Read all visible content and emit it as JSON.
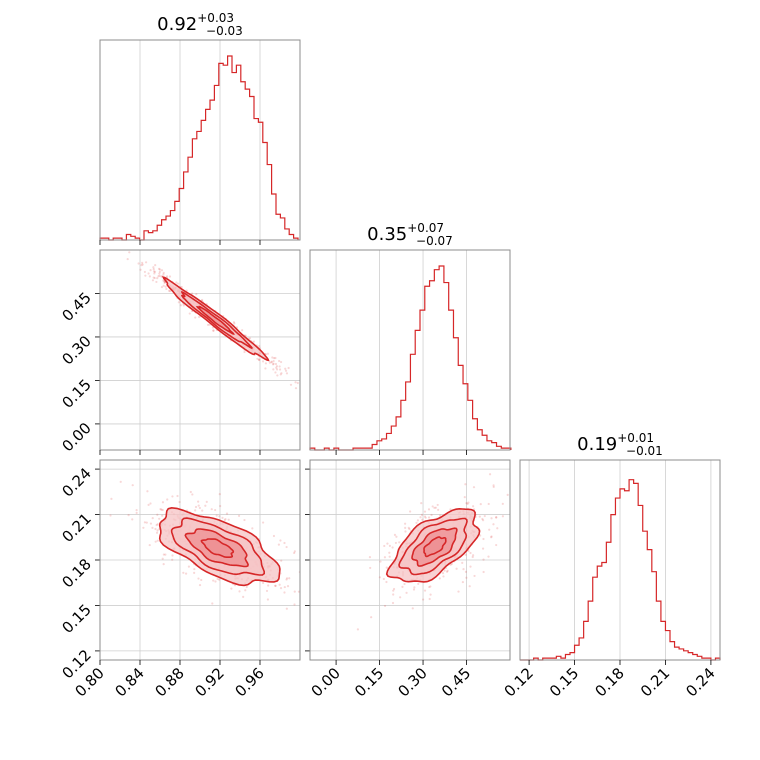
{
  "colors": {
    "accent": "#d62728",
    "fill_1": "#f6c3c4",
    "fill_2": "#ee8f92",
    "grid": "#cfcfcf",
    "frame": "#8c8c8c"
  },
  "chart_data": {
    "type": "corner",
    "grid": true,
    "parameters": [
      {
        "title": {
          "median": "0.92",
          "plus": "+0.03",
          "minus": "−0.03"
        },
        "range": [
          0.8,
          1.0
        ],
        "ticks": [
          0.8,
          0.84,
          0.88,
          0.92,
          0.96
        ],
        "tick_labels": [
          "0.80",
          "0.84",
          "0.88",
          "0.92",
          "0.96"
        ],
        "hist": [
          0.01,
          0.01,
          0.0,
          0.01,
          0.01,
          0.0,
          0.03,
          0.02,
          0.01,
          0.0,
          0.05,
          0.04,
          0.05,
          0.08,
          0.11,
          0.13,
          0.16,
          0.21,
          0.28,
          0.37,
          0.45,
          0.55,
          0.59,
          0.65,
          0.71,
          0.76,
          0.84,
          0.96,
          0.95,
          1.0,
          0.91,
          0.95,
          0.86,
          0.82,
          0.78,
          0.66,
          0.64,
          0.53,
          0.41,
          0.25,
          0.14,
          0.12,
          0.06,
          0.03,
          0.01
        ],
        "hist_start": 0.8,
        "hist_bin": 0.0044
      },
      {
        "title": {
          "median": "0.35",
          "plus": "+0.07",
          "minus": "−0.07"
        },
        "range": [
          -0.09,
          0.6
        ],
        "ticks": [
          0.0,
          0.15,
          0.3,
          0.45
        ],
        "tick_labels": [
          "0.00",
          "0.15",
          "0.30",
          "0.45"
        ],
        "hist": [
          0.01,
          0.0,
          0.0,
          0.01,
          0.0,
          0.01,
          0.0,
          0.0,
          0.0,
          0.01,
          0.01,
          0.01,
          0.01,
          0.03,
          0.05,
          0.06,
          0.09,
          0.13,
          0.18,
          0.27,
          0.37,
          0.52,
          0.65,
          0.76,
          0.89,
          0.92,
          0.98,
          1.0,
          0.91,
          0.76,
          0.61,
          0.46,
          0.36,
          0.27,
          0.17,
          0.11,
          0.08,
          0.05,
          0.04,
          0.02,
          0.01,
          0.01
        ],
        "hist_start": -0.09,
        "hist_bin": 0.0165
      },
      {
        "title": {
          "median": "0.19",
          "plus": "+0.01",
          "minus": "−0.01"
        },
        "range": [
          0.114,
          0.246
        ],
        "ticks": [
          0.12,
          0.15,
          0.18,
          0.21,
          0.24
        ],
        "tick_labels": [
          "0.12",
          "0.15",
          "0.18",
          "0.21",
          "0.24"
        ],
        "hist": [
          0.0,
          0.0,
          0.0,
          0.01,
          0.0,
          0.01,
          0.01,
          0.01,
          0.02,
          0.01,
          0.03,
          0.04,
          0.08,
          0.12,
          0.21,
          0.32,
          0.45,
          0.51,
          0.53,
          0.64,
          0.79,
          0.88,
          0.93,
          0.92,
          0.98,
          0.96,
          0.84,
          0.7,
          0.6,
          0.48,
          0.32,
          0.21,
          0.16,
          0.1,
          0.07,
          0.06,
          0.05,
          0.04,
          0.03,
          0.02,
          0.01,
          0.01,
          0.0,
          0.01
        ],
        "hist_start": 0.114,
        "hist_bin": 0.003
      }
    ],
    "pairs": [
      {
        "x_param": 0,
        "y_param": 1,
        "x_range": [
          0.8,
          1.0
        ],
        "y_range": [
          -0.09,
          0.6
        ],
        "y_ticks": [
          0.0,
          0.15,
          0.3,
          0.45
        ],
        "y_tick_labels": [
          "0.00",
          "0.15",
          "0.30",
          "0.45"
        ],
        "center": [
          0.915,
          0.36
        ],
        "sigma": [
          0.028,
          0.075
        ],
        "rho": -0.985,
        "contour_levels": [
          0.6,
          1.2,
          1.8
        ]
      },
      {
        "x_param": 0,
        "y_param": 2,
        "x_range": [
          0.8,
          1.0
        ],
        "y_range": [
          0.114,
          0.246
        ],
        "y_ticks": [
          0.12,
          0.15,
          0.18,
          0.21,
          0.24
        ],
        "y_tick_labels": [
          "0.12",
          "0.15",
          "0.18",
          "0.21",
          "0.24"
        ],
        "center": [
          0.918,
          0.188
        ],
        "sigma": [
          0.03,
          0.012
        ],
        "rho": -0.62,
        "contour_levels": [
          0.5,
          1.0,
          1.5,
          2.0
        ]
      },
      {
        "x_param": 1,
        "y_param": 2,
        "x_range": [
          -0.09,
          0.6
        ],
        "y_range": [
          0.114,
          0.246
        ],
        "y_ticks": [],
        "y_tick_labels": [],
        "center": [
          0.34,
          0.189
        ],
        "sigma": [
          0.075,
          0.012
        ],
        "rho": 0.6,
        "contour_levels": [
          0.5,
          1.0,
          1.5,
          2.0
        ]
      }
    ]
  }
}
